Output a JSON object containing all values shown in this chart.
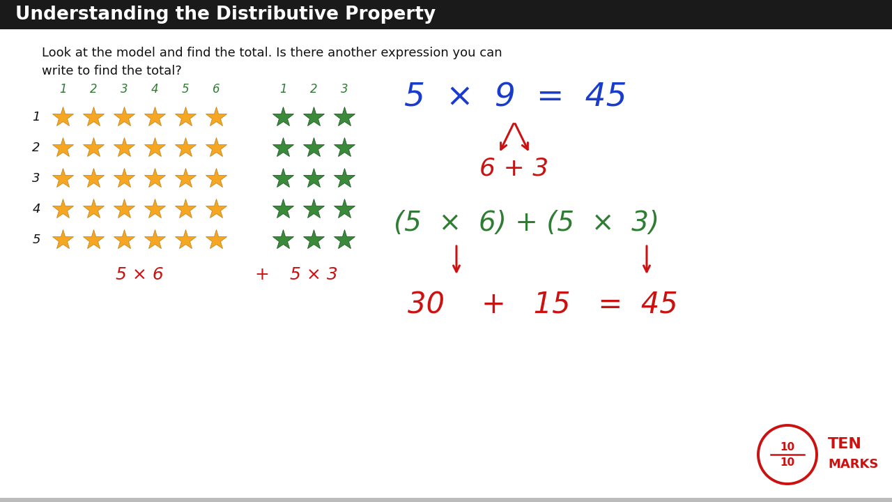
{
  "title": "Understanding the Distributive Property",
  "title_bg": "#1a1a1a",
  "title_color": "#ffffff",
  "bg_color": "#ffffff",
  "question_text1": "Look at the model and find the total. Is there another expression you can",
  "question_text2": "write to find the total?",
  "question_color": "#111111",
  "orange_star_color": "#f5a623",
  "orange_star_edge": "#c8871a",
  "green_star_color": "#3a8a3a",
  "green_star_edge": "#1e5c2a",
  "col_label_color": "#2e7d32",
  "row_label_color": "#111111",
  "red_color": "#cc1111",
  "blue_color": "#1a3ccc",
  "green_color": "#2e7d32",
  "tenmarks_color": "#cc1111",
  "bottom_bar_color": "#bbbbbb"
}
